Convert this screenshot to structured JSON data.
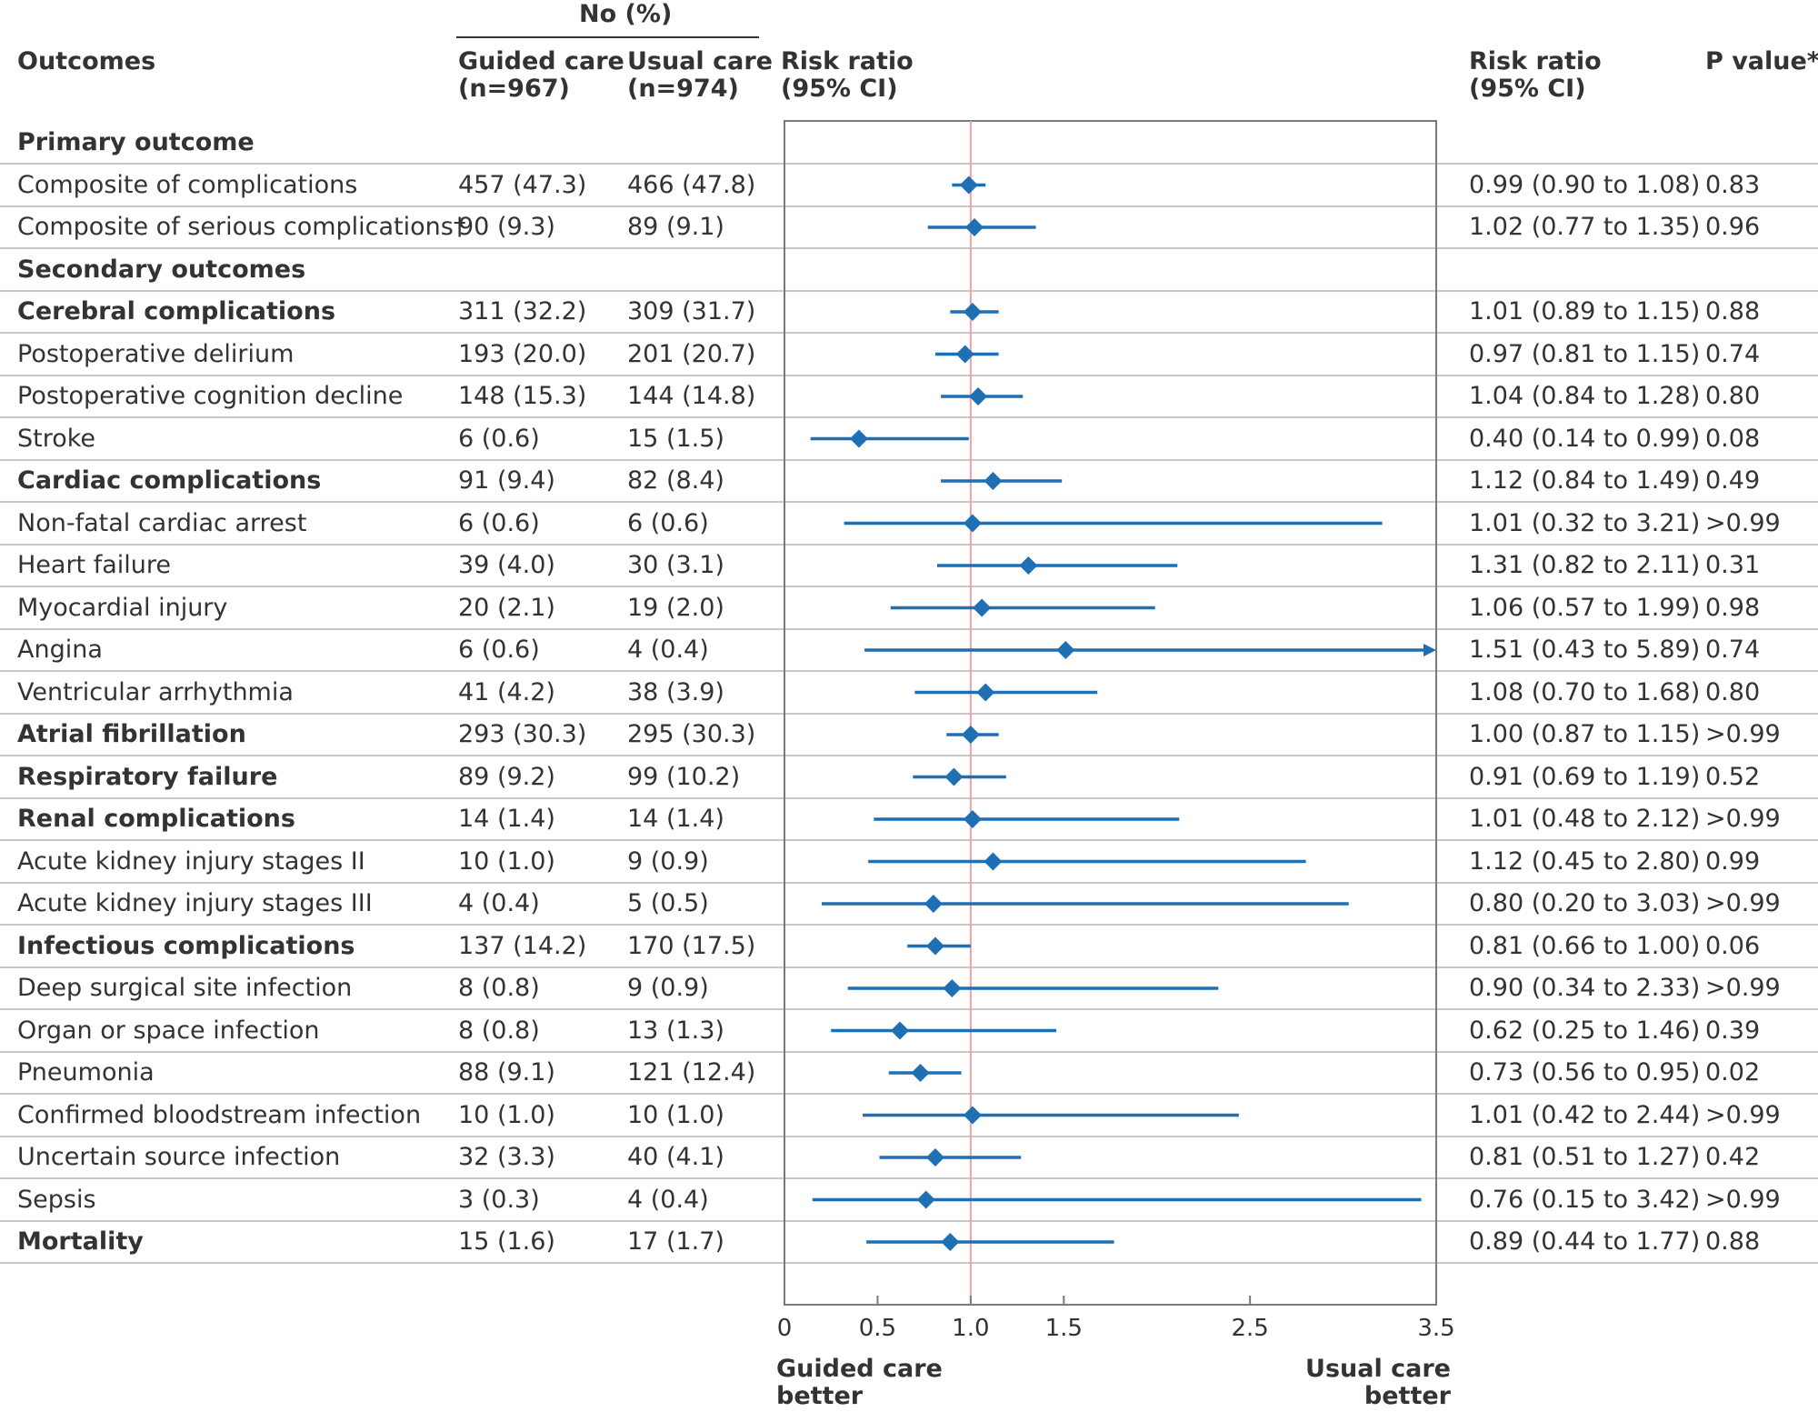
{
  "header": {
    "group_label": "No (%)",
    "outcomes": "Outcomes",
    "guided_l1": "Guided care",
    "guided_l2": "(n=967)",
    "usual_l1": "Usual care",
    "usual_l2": "(n=974)",
    "rr_plot_l1": "Risk ratio",
    "rr_plot_l2": "(95% CI)",
    "rr_col_l1": "Risk ratio",
    "rr_col_l2": "(95% CI)",
    "pvalue": "P value*"
  },
  "footer": {
    "left_l1": "Guided care",
    "left_l2": "better",
    "right_l1": "Usual care",
    "right_l2": "better"
  },
  "colors": {
    "marker": "#1f6fb5",
    "reference_line": "#f0a0a0",
    "grid": "#c8c8c8",
    "frame": "#7a7a7a",
    "text": "#333333"
  },
  "chart_data": {
    "type": "forest",
    "xlim": [
      0,
      3.5
    ],
    "reference": 1.0,
    "ticks": [
      {
        "value": 0,
        "label": "0"
      },
      {
        "value": 0.5,
        "label": "0.5"
      },
      {
        "value": 1.0,
        "label": "1.0"
      },
      {
        "value": 1.5,
        "label": "1.5"
      },
      {
        "value": 2.5,
        "label": "2.5"
      },
      {
        "value": 3.5,
        "label": "3.5"
      }
    ],
    "rows": [
      {
        "label": "Primary outcome",
        "section": true
      },
      {
        "label": "Composite of complications",
        "guided": "457 (47.3)",
        "usual": "466 (47.8)",
        "rr": 0.99,
        "lo": 0.9,
        "hi": 1.08,
        "rr_text": "0.99 (0.90 to 1.08)",
        "p": "0.83"
      },
      {
        "label": "Composite of serious complications†",
        "guided": "90 (9.3)",
        "usual": "89 (9.1)",
        "rr": 1.02,
        "lo": 0.77,
        "hi": 1.35,
        "rr_text": "1.02 (0.77 to 1.35)",
        "p": "0.96"
      },
      {
        "label": "Secondary outcomes",
        "section": true
      },
      {
        "label": "Cerebral complications",
        "bold": true,
        "guided": "311 (32.2)",
        "usual": "309 (31.7)",
        "rr": 1.01,
        "lo": 0.89,
        "hi": 1.15,
        "rr_text": "1.01 (0.89 to 1.15)",
        "p": "0.88"
      },
      {
        "label": "Postoperative delirium",
        "guided": "193 (20.0)",
        "usual": "201 (20.7)",
        "rr": 0.97,
        "lo": 0.81,
        "hi": 1.15,
        "rr_text": "0.97 (0.81 to 1.15)",
        "p": "0.74"
      },
      {
        "label": "Postoperative cognition decline",
        "guided": "148 (15.3)",
        "usual": "144 (14.8)",
        "rr": 1.04,
        "lo": 0.84,
        "hi": 1.28,
        "rr_text": "1.04 (0.84 to 1.28)",
        "p": "0.80"
      },
      {
        "label": "Stroke",
        "guided": "6 (0.6)",
        "usual": "15 (1.5)",
        "rr": 0.4,
        "lo": 0.14,
        "hi": 0.99,
        "rr_text": "0.40 (0.14 to 0.99)",
        "p": "0.08"
      },
      {
        "label": "Cardiac complications",
        "bold": true,
        "guided": "91 (9.4)",
        "usual": "82 (8.4)",
        "rr": 1.12,
        "lo": 0.84,
        "hi": 1.49,
        "rr_text": "1.12 (0.84 to 1.49)",
        "p": "0.49"
      },
      {
        "label": "Non-fatal cardiac arrest",
        "guided": "6 (0.6)",
        "usual": "6 (0.6)",
        "rr": 1.01,
        "lo": 0.32,
        "hi": 3.21,
        "rr_text": "1.01 (0.32 to 3.21)",
        "p": ">0.99"
      },
      {
        "label": "Heart failure",
        "guided": "39 (4.0)",
        "usual": "30 (3.1)",
        "rr": 1.31,
        "lo": 0.82,
        "hi": 2.11,
        "rr_text": "1.31 (0.82 to 2.11)",
        "p": "0.31"
      },
      {
        "label": "Myocardial injury",
        "guided": "20 (2.1)",
        "usual": "19 (2.0)",
        "rr": 1.06,
        "lo": 0.57,
        "hi": 1.99,
        "rr_text": "1.06 (0.57 to 1.99)",
        "p": "0.98"
      },
      {
        "label": "Angina",
        "guided": "6 (0.6)",
        "usual": "4 (0.4)",
        "rr": 1.51,
        "lo": 0.43,
        "hi": 5.89,
        "rr_text": "1.51 (0.43 to 5.89)",
        "p": "0.74"
      },
      {
        "label": "Ventricular arrhythmia",
        "guided": "41 (4.2)",
        "usual": "38 (3.9)",
        "rr": 1.08,
        "lo": 0.7,
        "hi": 1.68,
        "rr_text": "1.08 (0.70 to 1.68)",
        "p": "0.80"
      },
      {
        "label": "Atrial fibrillation",
        "bold": true,
        "guided": "293 (30.3)",
        "usual": "295 (30.3)",
        "rr": 1.0,
        "lo": 0.87,
        "hi": 1.15,
        "rr_text": "1.00 (0.87 to 1.15)",
        "p": ">0.99"
      },
      {
        "label": "Respiratory failure",
        "bold": true,
        "guided": "89 (9.2)",
        "usual": "99 (10.2)",
        "rr": 0.91,
        "lo": 0.69,
        "hi": 1.19,
        "rr_text": "0.91 (0.69 to 1.19)",
        "p": "0.52"
      },
      {
        "label": "Renal complications",
        "bold": true,
        "guided": "14 (1.4)",
        "usual": "14 (1.4)",
        "rr": 1.01,
        "lo": 0.48,
        "hi": 2.12,
        "rr_text": "1.01 (0.48 to 2.12)",
        "p": ">0.99"
      },
      {
        "label": "Acute kidney injury stages II",
        "guided": "10 (1.0)",
        "usual": "9 (0.9)",
        "rr": 1.12,
        "lo": 0.45,
        "hi": 2.8,
        "rr_text": "1.12 (0.45 to 2.80)",
        "p": "0.99"
      },
      {
        "label": "Acute kidney injury stages III",
        "guided": "4 (0.4)",
        "usual": "5 (0.5)",
        "rr": 0.8,
        "lo": 0.2,
        "hi": 3.03,
        "rr_text": "0.80 (0.20 to 3.03)",
        "p": ">0.99"
      },
      {
        "label": "Infectious complications",
        "bold": true,
        "guided": "137 (14.2)",
        "usual": "170 (17.5)",
        "rr": 0.81,
        "lo": 0.66,
        "hi": 1.0,
        "rr_text": "0.81 (0.66 to 1.00)",
        "p": "0.06"
      },
      {
        "label": "Deep surgical site infection",
        "guided": "8 (0.8)",
        "usual": "9 (0.9)",
        "rr": 0.9,
        "lo": 0.34,
        "hi": 2.33,
        "rr_text": "0.90 (0.34 to 2.33)",
        "p": ">0.99"
      },
      {
        "label": "Organ or space infection",
        "guided": "8 (0.8)",
        "usual": "13 (1.3)",
        "rr": 0.62,
        "lo": 0.25,
        "hi": 1.46,
        "rr_text": "0.62 (0.25 to 1.46)",
        "p": "0.39"
      },
      {
        "label": "Pneumonia",
        "guided": "88 (9.1)",
        "usual": "121 (12.4)",
        "rr": 0.73,
        "lo": 0.56,
        "hi": 0.95,
        "rr_text": "0.73 (0.56 to 0.95)",
        "p": "0.02"
      },
      {
        "label": "Confirmed bloodstream infection",
        "guided": "10 (1.0)",
        "usual": "10 (1.0)",
        "rr": 1.01,
        "lo": 0.42,
        "hi": 2.44,
        "rr_text": "1.01 (0.42 to 2.44)",
        "p": ">0.99"
      },
      {
        "label": "Uncertain source infection",
        "guided": "32 (3.3)",
        "usual": "40 (4.1)",
        "rr": 0.81,
        "lo": 0.51,
        "hi": 1.27,
        "rr_text": "0.81 (0.51 to 1.27)",
        "p": "0.42"
      },
      {
        "label": "Sepsis",
        "guided": "3 (0.3)",
        "usual": "4 (0.4)",
        "rr": 0.76,
        "lo": 0.15,
        "hi": 3.42,
        "rr_text": "0.76 (0.15 to 3.42)",
        "p": ">0.99"
      },
      {
        "label": "Mortality",
        "bold": true,
        "guided": "15 (1.6)",
        "usual": "17 (1.7)",
        "rr": 0.89,
        "lo": 0.44,
        "hi": 1.77,
        "rr_text": "0.89 (0.44 to 1.77)",
        "p": "0.88"
      }
    ]
  }
}
